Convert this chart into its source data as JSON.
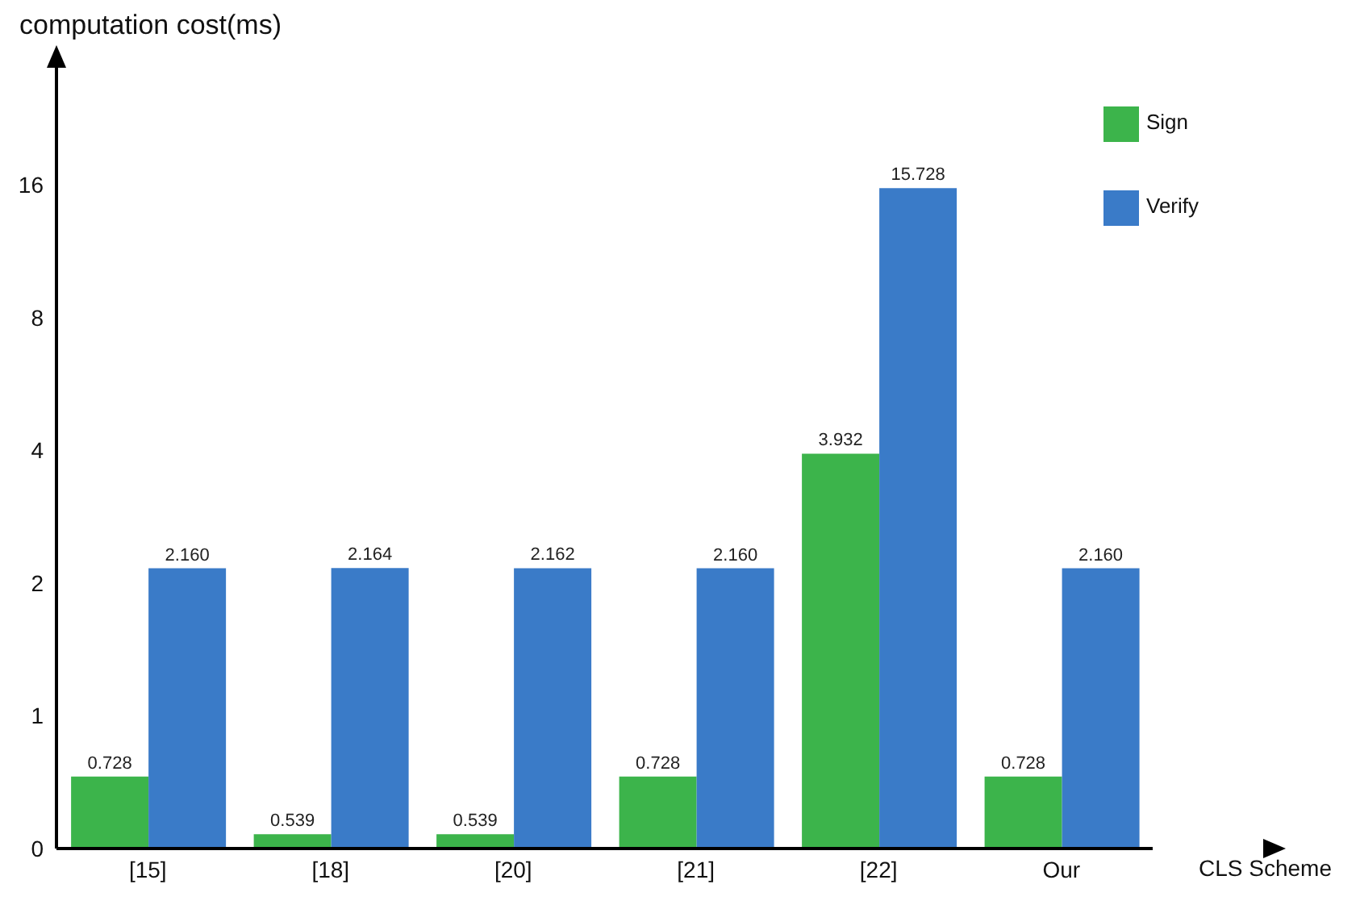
{
  "chart_data": {
    "type": "bar",
    "ylabel": "computation cost(ms)",
    "xlabel": "CLS Scheme",
    "categories": [
      "[15]",
      "[18]",
      "[20]",
      "[21]",
      "[22]",
      "Our"
    ],
    "series": [
      {
        "name": "Sign",
        "color": "#3cb44b",
        "values": [
          0.728,
          0.539,
          0.539,
          0.728,
          3.932,
          0.728
        ],
        "value_labels": [
          "0.728",
          "0.539",
          "0.539",
          "0.728",
          "3.932",
          "0.728"
        ]
      },
      {
        "name": "Verify",
        "color": "#3a7bc8",
        "values": [
          2.16,
          2.164,
          2.162,
          2.16,
          15.728,
          2.16
        ],
        "value_labels": [
          "2.160",
          "2.164",
          "2.162",
          "2.160",
          "15.728",
          "2.160"
        ]
      }
    ],
    "log": true,
    "ylim": [
      0.5,
      30
    ],
    "yticks": [
      {
        "value": 0.5,
        "label": "0"
      },
      1,
      2,
      4,
      8,
      16
    ],
    "legend": "top right",
    "grid": false
  }
}
